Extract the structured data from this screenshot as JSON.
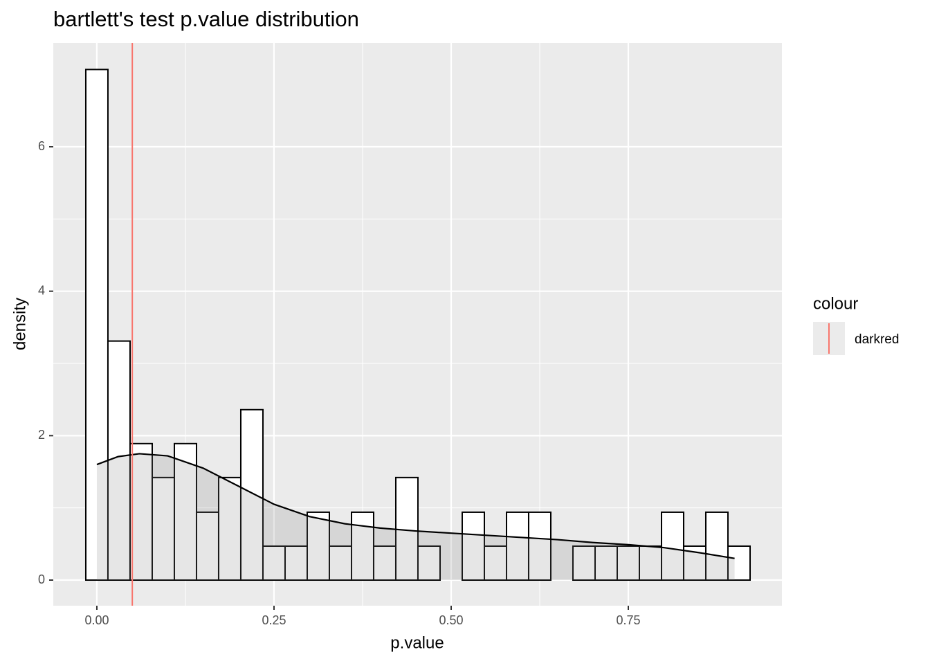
{
  "chart_data": {
    "type": "histogram",
    "title": "bartlett's test p.value distribution",
    "x_label": "p.value",
    "y_label": "density",
    "bins": [
      -0.015625,
      0.015625,
      0.046875,
      0.078125,
      0.109375,
      0.140625,
      0.171875,
      0.203125,
      0.234375,
      0.265625,
      0.296875,
      0.328125,
      0.359375,
      0.390625,
      0.421875,
      0.453125,
      0.484375,
      0.515625,
      0.546875,
      0.578125,
      0.609375,
      0.640625,
      0.671875,
      0.703125,
      0.734375,
      0.765625,
      0.796875,
      0.828125,
      0.859375,
      0.890625,
      0.921875
    ],
    "values": [
      7.07,
      3.31,
      1.89,
      1.42,
      1.89,
      0.94,
      1.42,
      2.36,
      0.47,
      0.47,
      0.94,
      0.47,
      0.94,
      0.47,
      1.42,
      0.47,
      0,
      0.94,
      0.47,
      0.94,
      0.94,
      0,
      0.47,
      0.47,
      0.47,
      0.47,
      0.94,
      0.47,
      0.94,
      0.47
    ],
    "color": "#ffffff",
    "edge_color": "#000000",
    "density": {
      "x": [
        0,
        0.03,
        0.06,
        0.1,
        0.15,
        0.2,
        0.25,
        0.3,
        0.35,
        0.4,
        0.45,
        0.5,
        0.55,
        0.6,
        0.65,
        0.7,
        0.75,
        0.8,
        0.85,
        0.9
      ],
      "values": [
        1.6,
        1.71,
        1.75,
        1.72,
        1.55,
        1.3,
        1.05,
        0.88,
        0.78,
        0.72,
        0.68,
        0.65,
        0.62,
        0.59,
        0.56,
        0.52,
        0.49,
        0.45,
        0.38,
        0.3
      ],
      "color": "#000000",
      "fill": "rgba(128,128,128,0.2)"
    },
    "vline": {
      "x": 0.05,
      "color": "#F8766D"
    },
    "xlim": [
      -0.0615,
      0.9668
    ],
    "ylim": [
      -0.3546,
      7.438
    ],
    "xticks": [
      {
        "value": 0,
        "label": "0.00"
      },
      0.25,
      {
        "value": 0.5,
        "label": "0.50"
      },
      0.75
    ],
    "yticks": [
      0,
      2,
      4,
      6
    ],
    "grid": true,
    "legend": {
      "title": "colour",
      "labels": [
        "darkred"
      ],
      "position": "right"
    }
  }
}
